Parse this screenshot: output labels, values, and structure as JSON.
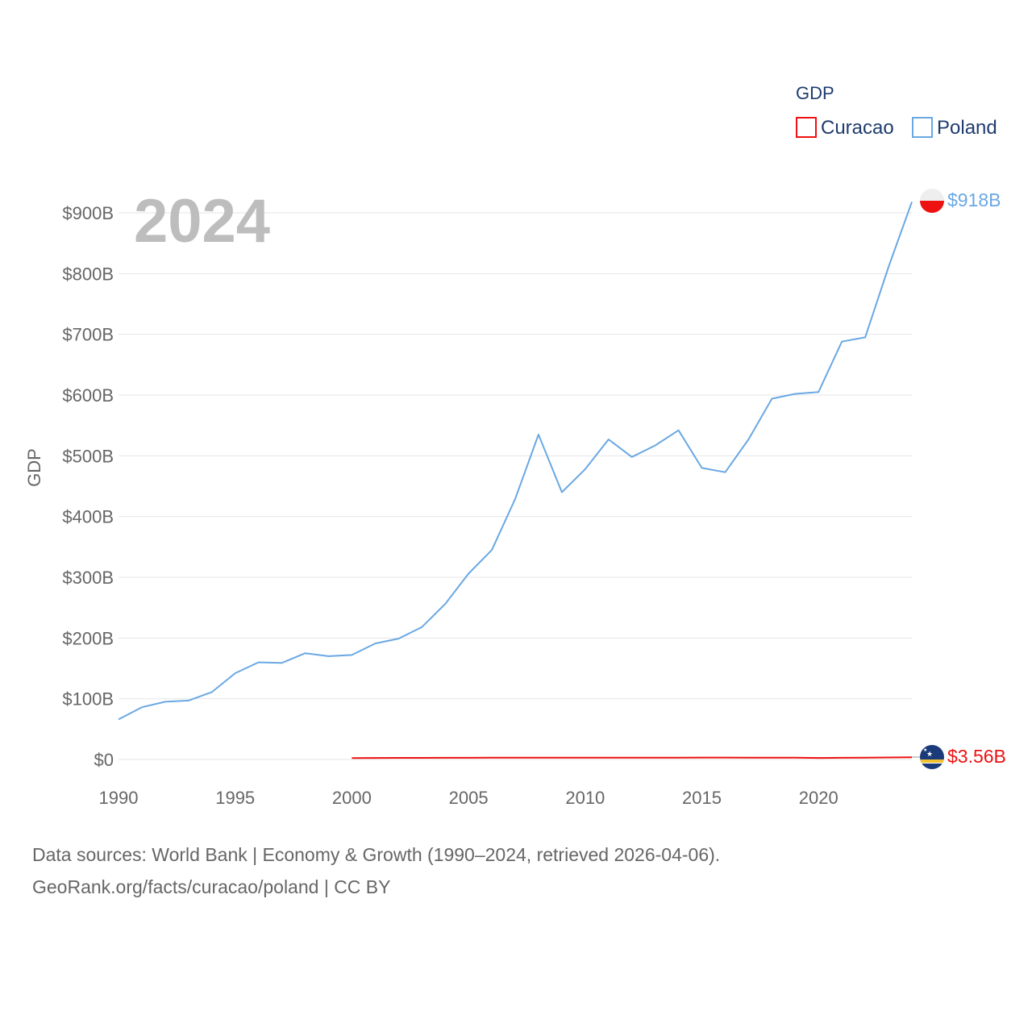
{
  "chart_data": {
    "type": "line",
    "year_label": "2024",
    "ylabel": "GDP",
    "ylim": [
      0,
      900000000000
    ],
    "xlim": [
      1990,
      2024
    ],
    "yticks": [
      {
        "value": 0,
        "label": "$0"
      },
      {
        "value": 100000000000,
        "label": "$100B"
      },
      {
        "value": 200000000000,
        "label": "$200B"
      },
      {
        "value": 300000000000,
        "label": "$300B"
      },
      {
        "value": 400000000000,
        "label": "$400B"
      },
      {
        "value": 500000000000,
        "label": "$500B"
      },
      {
        "value": 600000000000,
        "label": "$600B"
      },
      {
        "value": 700000000000,
        "label": "$700B"
      },
      {
        "value": 800000000000,
        "label": "$800B"
      },
      {
        "value": 900000000000,
        "label": "$900B"
      }
    ],
    "xticks": [
      {
        "value": 1990,
        "label": "1990"
      },
      {
        "value": 1995,
        "label": "1995"
      },
      {
        "value": 2000,
        "label": "2000"
      },
      {
        "value": 2005,
        "label": "2005"
      },
      {
        "value": 2010,
        "label": "2010"
      },
      {
        "value": 2015,
        "label": "2015"
      },
      {
        "value": 2020,
        "label": "2020"
      }
    ],
    "legend": {
      "title": "GDP",
      "position": "top-right"
    },
    "series": [
      {
        "name": "Curacao",
        "color": "#ee1111",
        "end_label": "$3.56B",
        "x": [
          2000,
          2001,
          2002,
          2003,
          2004,
          2005,
          2006,
          2007,
          2008,
          2009,
          2010,
          2011,
          2012,
          2013,
          2014,
          2015,
          2016,
          2017,
          2018,
          2019,
          2020,
          2021,
          2022,
          2023,
          2024
        ],
        "values": [
          2400000000.0,
          2500000000.0,
          2600000000.0,
          2700000000.0,
          2800000000.0,
          2800000000.0,
          2900000000.0,
          3000000000.0,
          3100000000.0,
          3000000000.0,
          3000000000.0,
          3100000000.0,
          3100000000.0,
          3100000000.0,
          3100000000.0,
          3200000000.0,
          3200000000.0,
          3100000000.0,
          3100000000.0,
          3100000000.0,
          2500000000.0,
          2800000000.0,
          3000000000.0,
          3300000000.0,
          3560000000.0
        ]
      },
      {
        "name": "Poland",
        "color": "#6aa8e3",
        "end_label": "$918B",
        "x": [
          1990,
          1991,
          1992,
          1993,
          1994,
          1995,
          1996,
          1997,
          1998,
          1999,
          2000,
          2001,
          2002,
          2003,
          2004,
          2005,
          2006,
          2007,
          2008,
          2009,
          2010,
          2011,
          2012,
          2013,
          2014,
          2015,
          2016,
          2017,
          2018,
          2019,
          2020,
          2021,
          2022,
          2023,
          2024
        ],
        "values": [
          66000000000.0,
          86000000000.0,
          95000000000.0,
          97000000000.0,
          111000000000.0,
          142000000000.0,
          160000000000.0,
          159000000000.0,
          175000000000.0,
          170000000000.0,
          172000000000.0,
          191000000000.0,
          199000000000.0,
          218000000000.0,
          256000000000.0,
          306000000000.0,
          345000000000.0,
          429000000000.0,
          535000000000.0,
          440000000000.0,
          478000000000.0,
          527000000000.0,
          498000000000.0,
          517000000000.0,
          542000000000.0,
          480000000000.0,
          473000000000.0,
          527000000000.0,
          594000000000.0,
          602000000000.0,
          605000000000.0,
          688000000000.0,
          695000000000.0,
          811000000000.0,
          918000000000.0
        ]
      }
    ]
  },
  "footer": {
    "line1": "Data sources: World Bank | Economy & Growth (1990–2024, retrieved 2026-04-06).",
    "line2": "GeoRank.org/facts/curacao/poland | CC BY"
  }
}
